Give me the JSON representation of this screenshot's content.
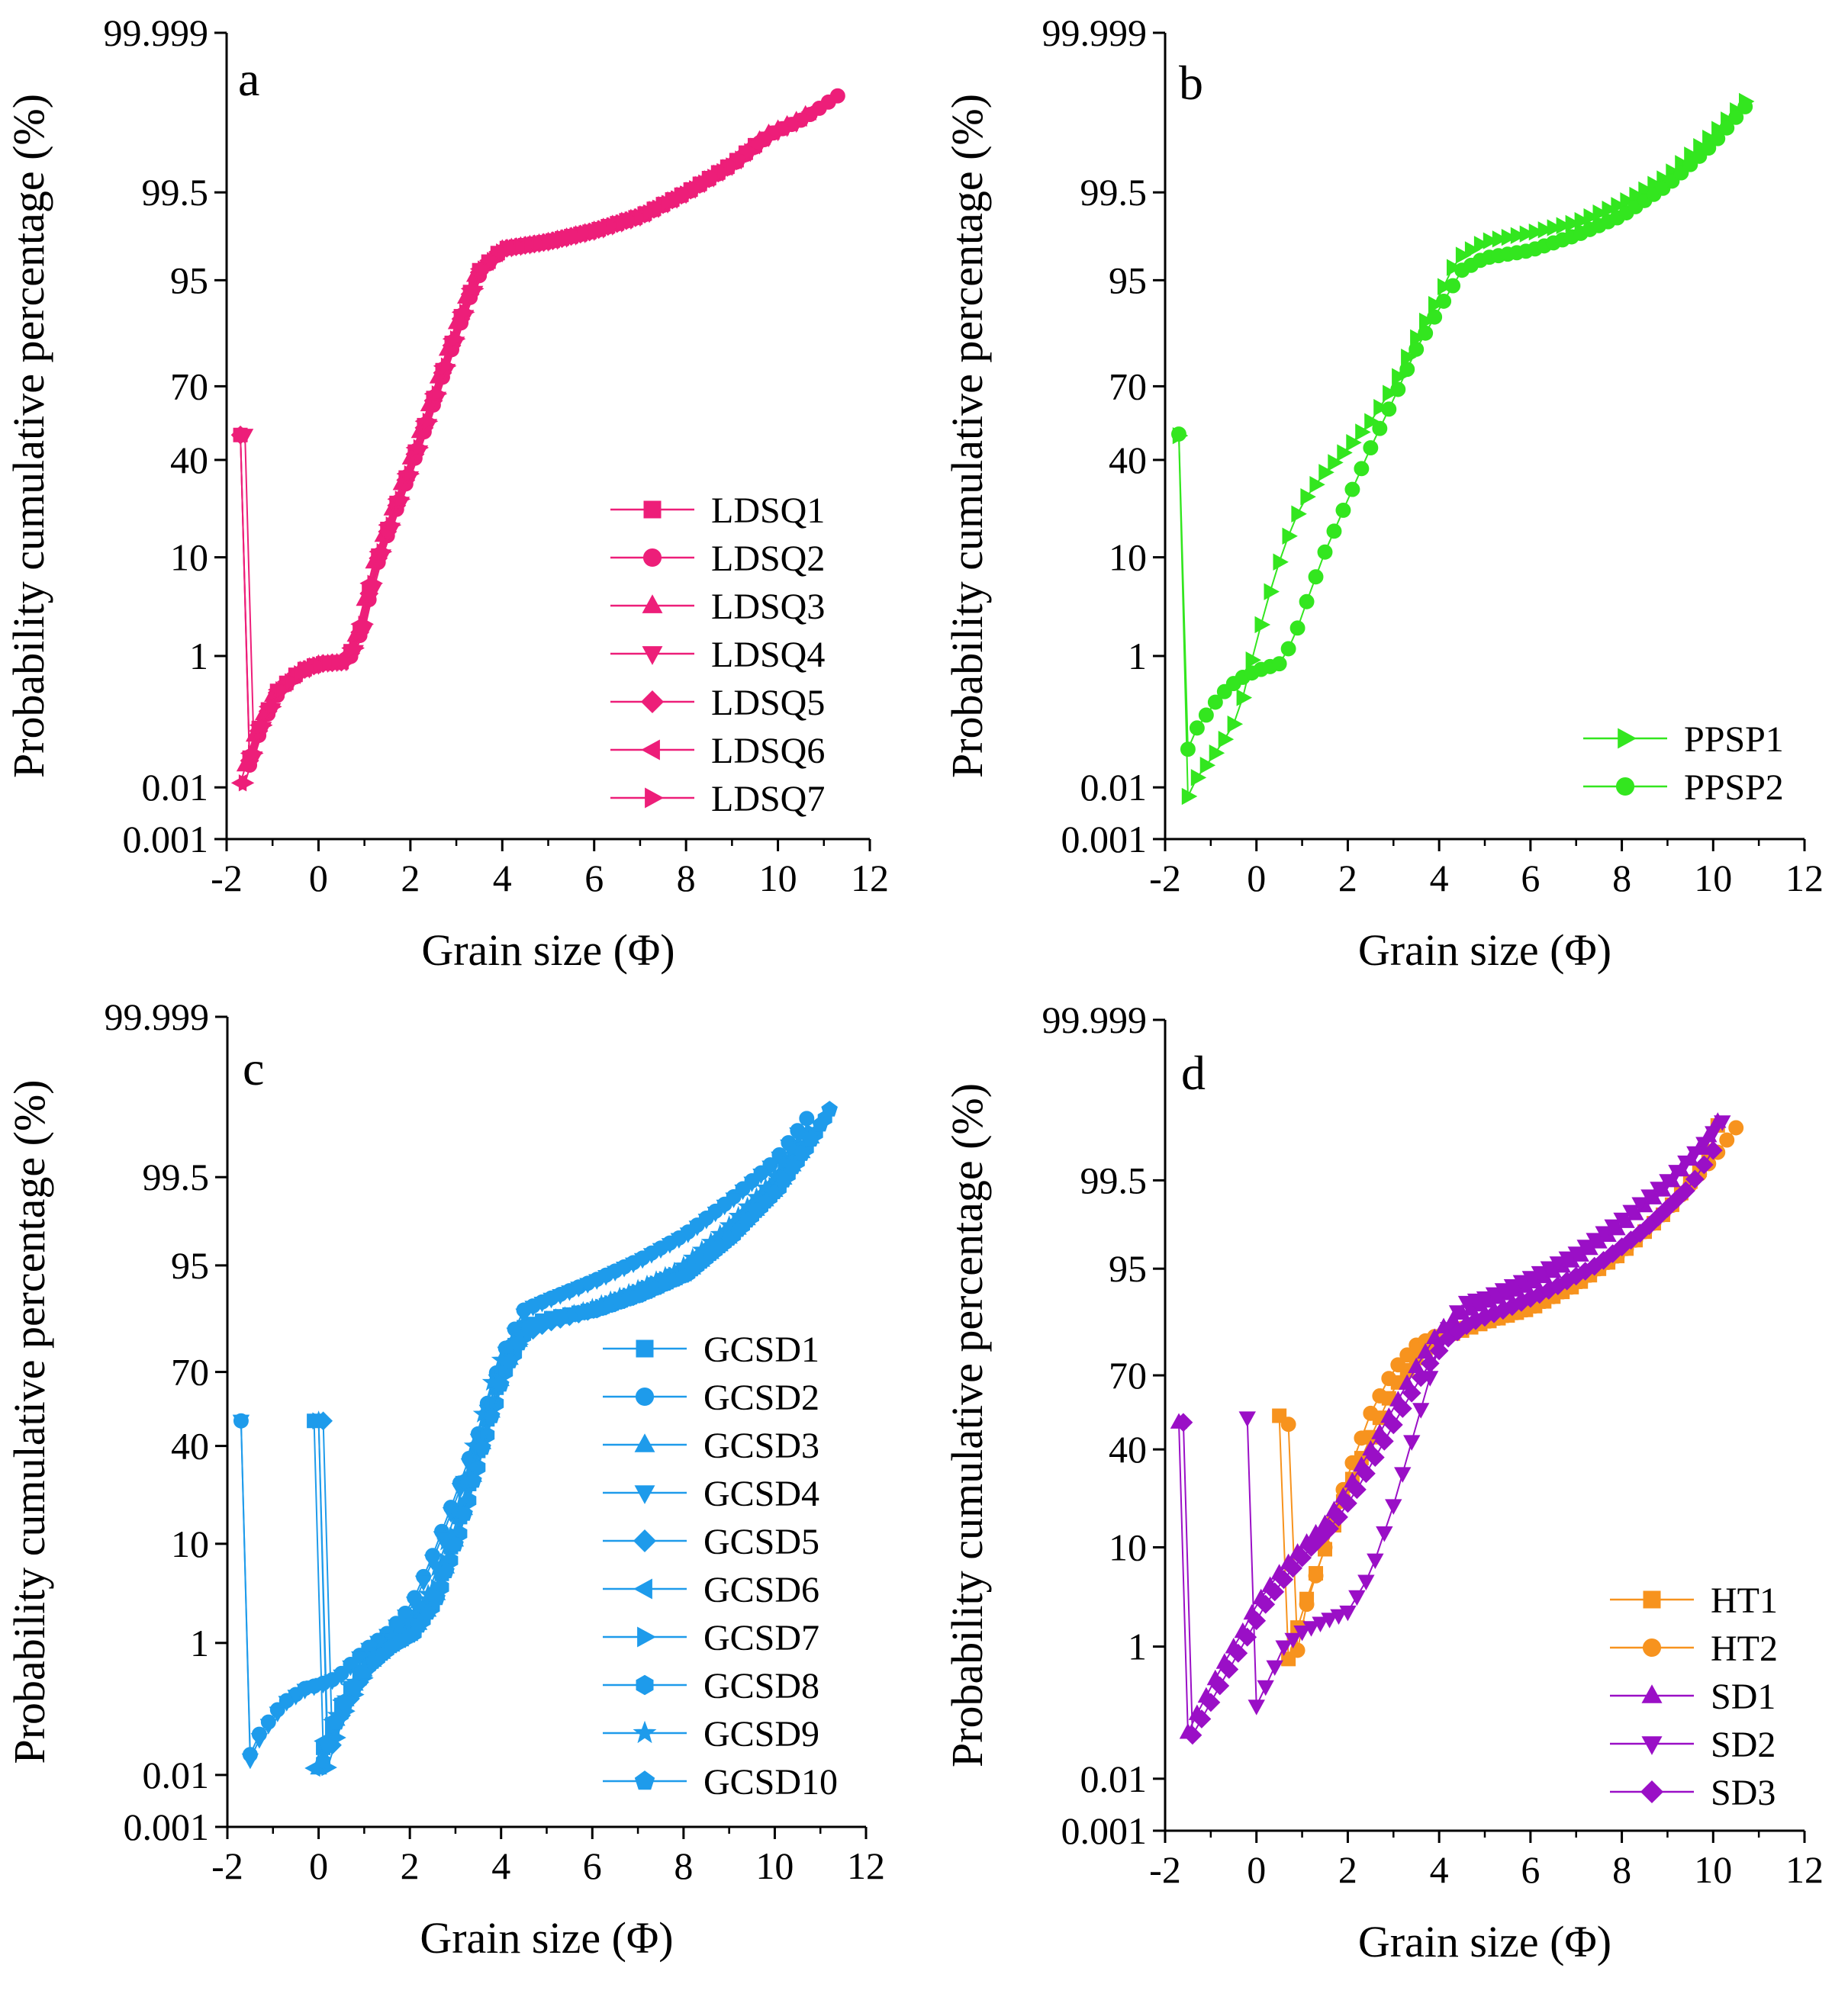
{
  "figure": {
    "description_free": true
  },
  "chart_data": [
    {
      "type": "line",
      "panel_label": "a",
      "xlabel": "Grain size (Φ)",
      "ylabel": "Probability cumulative percentage (%)",
      "xlim": [
        -2,
        12
      ],
      "x_ticks": [
        -2,
        0,
        2,
        4,
        6,
        8,
        10,
        12
      ],
      "x_tick_labels": [
        "-2",
        "0",
        "2",
        "4",
        "6",
        "8",
        "10",
        "12"
      ],
      "y_scale": "probability",
      "y_ticks": [
        0.001,
        0.01,
        1,
        10,
        40,
        70,
        95,
        99.5,
        99.999
      ],
      "y_tick_labels": [
        "0.001",
        "0.01",
        "1",
        "10",
        "40",
        "70",
        "95",
        "99.5",
        "99.999"
      ],
      "legend_position": "lower-right",
      "series": [
        {
          "name": "LDSQ1",
          "color": "#ED1E79",
          "marker": "square",
          "start": -1.7,
          "end": 9.5,
          "shape": "ldsq",
          "shift": 0.0
        },
        {
          "name": "LDSQ2",
          "color": "#ED1E79",
          "marker": "circle",
          "start": -1.7,
          "end": 11.3,
          "shape": "ldsq",
          "shift": 0.05
        },
        {
          "name": "LDSQ3",
          "color": "#ED1E79",
          "marker": "triangle-up",
          "start": -1.6,
          "end": 10.7,
          "shape": "ldsq",
          "shift": -0.05
        },
        {
          "name": "LDSQ4",
          "color": "#ED1E79",
          "marker": "triangle-down",
          "start": -1.6,
          "end": 10.5,
          "shape": "ldsq",
          "shift": 0.1
        },
        {
          "name": "LDSQ5",
          "color": "#ED1E79",
          "marker": "diamond",
          "start": -1.7,
          "end": 9.5,
          "shape": "ldsq",
          "shift": 0.02
        },
        {
          "name": "LDSQ6",
          "color": "#ED1E79",
          "marker": "triangle-left",
          "start": -1.7,
          "end": 10.8,
          "shape": "ldsq",
          "shift": -0.03
        },
        {
          "name": "LDSQ7",
          "color": "#ED1E79",
          "marker": "triangle-right",
          "start": -1.6,
          "end": 9.4,
          "shape": "ldsq",
          "shift": 0.07
        }
      ]
    },
    {
      "type": "line",
      "panel_label": "b",
      "xlabel": "Grain size (Φ)",
      "ylabel": "Probability cumulative percentage (%)",
      "xlim": [
        -2,
        12
      ],
      "x_ticks": [
        -2,
        0,
        2,
        4,
        6,
        8,
        10,
        12
      ],
      "x_tick_labels": [
        "-2",
        "0",
        "2",
        "4",
        "6",
        "8",
        "10",
        "12"
      ],
      "y_scale": "probability",
      "y_ticks": [
        0.001,
        0.01,
        1,
        10,
        40,
        70,
        95,
        99.5,
        99.999
      ],
      "y_tick_labels": [
        "0.001",
        "0.01",
        "1",
        "10",
        "40",
        "70",
        "95",
        "99.5",
        "99.999"
      ],
      "legend_position": "lower-right",
      "series": [
        {
          "name": "PPSP1",
          "color": "#33E61F",
          "marker": "triangle-right",
          "start": -1.7,
          "end": 10.7,
          "shape": "ppsp1",
          "shift": 0.0
        },
        {
          "name": "PPSP2",
          "color": "#33E61F",
          "marker": "circle",
          "start": -1.7,
          "end": 10.8,
          "shape": "ppsp2",
          "shift": 0.0
        }
      ]
    },
    {
      "type": "line",
      "panel_label": "c",
      "xlabel": "Grain size (Φ)",
      "ylabel": "Probability cumulative percentage (%)",
      "xlim": [
        -2,
        12
      ],
      "x_ticks": [
        -2,
        0,
        2,
        4,
        6,
        8,
        10,
        12
      ],
      "x_tick_labels": [
        "-2",
        "0",
        "2",
        "4",
        "6",
        "8",
        "10",
        "12"
      ],
      "y_scale": "probability",
      "y_ticks": [
        0.001,
        0.01,
        1,
        10,
        40,
        70,
        95,
        99.5,
        99.999
      ],
      "y_tick_labels": [
        "0.001",
        "0.01",
        "1",
        "10",
        "40",
        "70",
        "95",
        "99.5",
        "99.999"
      ],
      "legend_position": "lower-right",
      "series": [
        {
          "name": "GCSD1",
          "color": "#1E9BEB",
          "marker": "square",
          "start": -0.1,
          "end": 10.6,
          "shape": "gcsdA",
          "shift": 0.0
        },
        {
          "name": "GCSD2",
          "color": "#1E9BEB",
          "marker": "circle",
          "start": -1.7,
          "end": 10.7,
          "shape": "gcsdB",
          "shift": 0.0
        },
        {
          "name": "GCSD3",
          "color": "#1E9BEB",
          "marker": "triangle-up",
          "start": 0.0,
          "end": 10.8,
          "shape": "gcsdA",
          "shift": 0.05
        },
        {
          "name": "GCSD4",
          "color": "#1E9BEB",
          "marker": "triangle-down",
          "start": -1.7,
          "end": 10.6,
          "shape": "gcsdB",
          "shift": 0.05
        },
        {
          "name": "GCSD5",
          "color": "#1E9BEB",
          "marker": "diamond",
          "start": 0.1,
          "end": 10.8,
          "shape": "gcsdC",
          "shift": 0.0
        },
        {
          "name": "GCSD6",
          "color": "#1E9BEB",
          "marker": "triangle-left",
          "start": -0.1,
          "end": 10.7,
          "shape": "gcsdA",
          "shift": -0.05
        },
        {
          "name": "GCSD7",
          "color": "#1E9BEB",
          "marker": "triangle-right",
          "start": 0.0,
          "end": 10.9,
          "shape": "gcsdC",
          "shift": 0.05
        },
        {
          "name": "GCSD8",
          "color": "#1E9BEB",
          "marker": "hexagon",
          "start": 0.1,
          "end": 11.2,
          "shape": "gcsdA",
          "shift": 0.1
        },
        {
          "name": "GCSD9",
          "color": "#1E9BEB",
          "marker": "star",
          "start": 0.0,
          "end": 10.7,
          "shape": "gcsdC",
          "shift": -0.1
        },
        {
          "name": "GCSD10",
          "color": "#1E9BEB",
          "marker": "pentagon",
          "start": 0.2,
          "end": 11.3,
          "shape": "gcsdA",
          "shift": 0.08
        }
      ]
    },
    {
      "type": "line",
      "panel_label": "d",
      "xlabel": "Grain size (Φ)",
      "ylabel": "Probability cumulative percentage (%)",
      "xlim": [
        -2,
        12
      ],
      "x_ticks": [
        -2,
        0,
        2,
        4,
        6,
        8,
        10,
        12
      ],
      "x_tick_labels": [
        "-2",
        "0",
        "2",
        "4",
        "6",
        "8",
        "10",
        "12"
      ],
      "y_scale": "probability",
      "y_ticks": [
        0.001,
        0.01,
        1,
        10,
        40,
        70,
        95,
        99.5,
        99.999
      ],
      "y_tick_labels": [
        "0.001",
        "0.01",
        "1",
        "10",
        "40",
        "70",
        "95",
        "99.5",
        "99.999"
      ],
      "legend_position": "lower-right",
      "series": [
        {
          "name": "HT1",
          "color": "#F7931E",
          "marker": "square",
          "start": 0.5,
          "end": 10.2,
          "shape": "ht1",
          "shift": 0.0
        },
        {
          "name": "HT2",
          "color": "#F7931E",
          "marker": "circle",
          "start": 0.7,
          "end": 10.6,
          "shape": "ht2",
          "shift": 0.0
        },
        {
          "name": "SD1",
          "color": "#9A0FC6",
          "marker": "triangle-up",
          "start": -1.7,
          "end": 10.1,
          "shape": "sdA",
          "shift": 0.0
        },
        {
          "name": "SD2",
          "color": "#9A0FC6",
          "marker": "triangle-down",
          "start": -0.2,
          "end": 10.2,
          "shape": "sd2",
          "shift": 0.0
        },
        {
          "name": "SD3",
          "color": "#9A0FC6",
          "marker": "diamond",
          "start": -1.6,
          "end": 10.1,
          "shape": "sdB",
          "shift": 0.0
        }
      ]
    }
  ]
}
